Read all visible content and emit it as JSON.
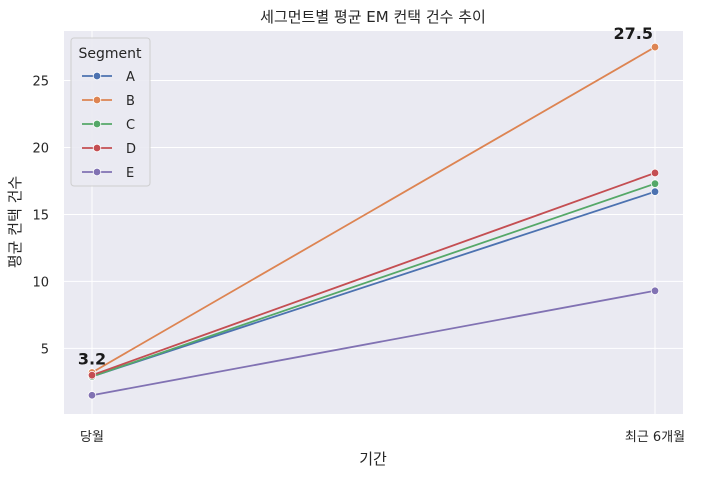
{
  "chart_data": {
    "type": "line",
    "title": "세그먼트별 평균 EM 컨택 건수 추이",
    "xlabel": "기간",
    "ylabel": "평균 컨택 건수",
    "categories": [
      "당월",
      "최근 6개월"
    ],
    "ylim": [
      0.1,
      28.7
    ],
    "yticks": [
      5,
      10,
      15,
      20,
      25
    ],
    "grid": true,
    "background": "#eaeaf2",
    "legend": {
      "title": "Segment",
      "position": "top-left"
    },
    "series": [
      {
        "name": "A",
        "color": "#4c72b0",
        "values": [
          2.9,
          16.7
        ]
      },
      {
        "name": "B",
        "color": "#dd8452",
        "values": [
          3.2,
          27.5
        ]
      },
      {
        "name": "C",
        "color": "#55a868",
        "values": [
          2.9,
          17.3
        ]
      },
      {
        "name": "D",
        "color": "#c44e52",
        "values": [
          3.0,
          18.1
        ]
      },
      {
        "name": "E",
        "color": "#8172b3",
        "values": [
          1.5,
          9.3
        ]
      }
    ],
    "annotations": [
      {
        "text": "3.2",
        "category": "당월",
        "value": 3.2
      },
      {
        "text": "27.5",
        "category": "최근 6개월",
        "value": 27.5
      }
    ]
  }
}
